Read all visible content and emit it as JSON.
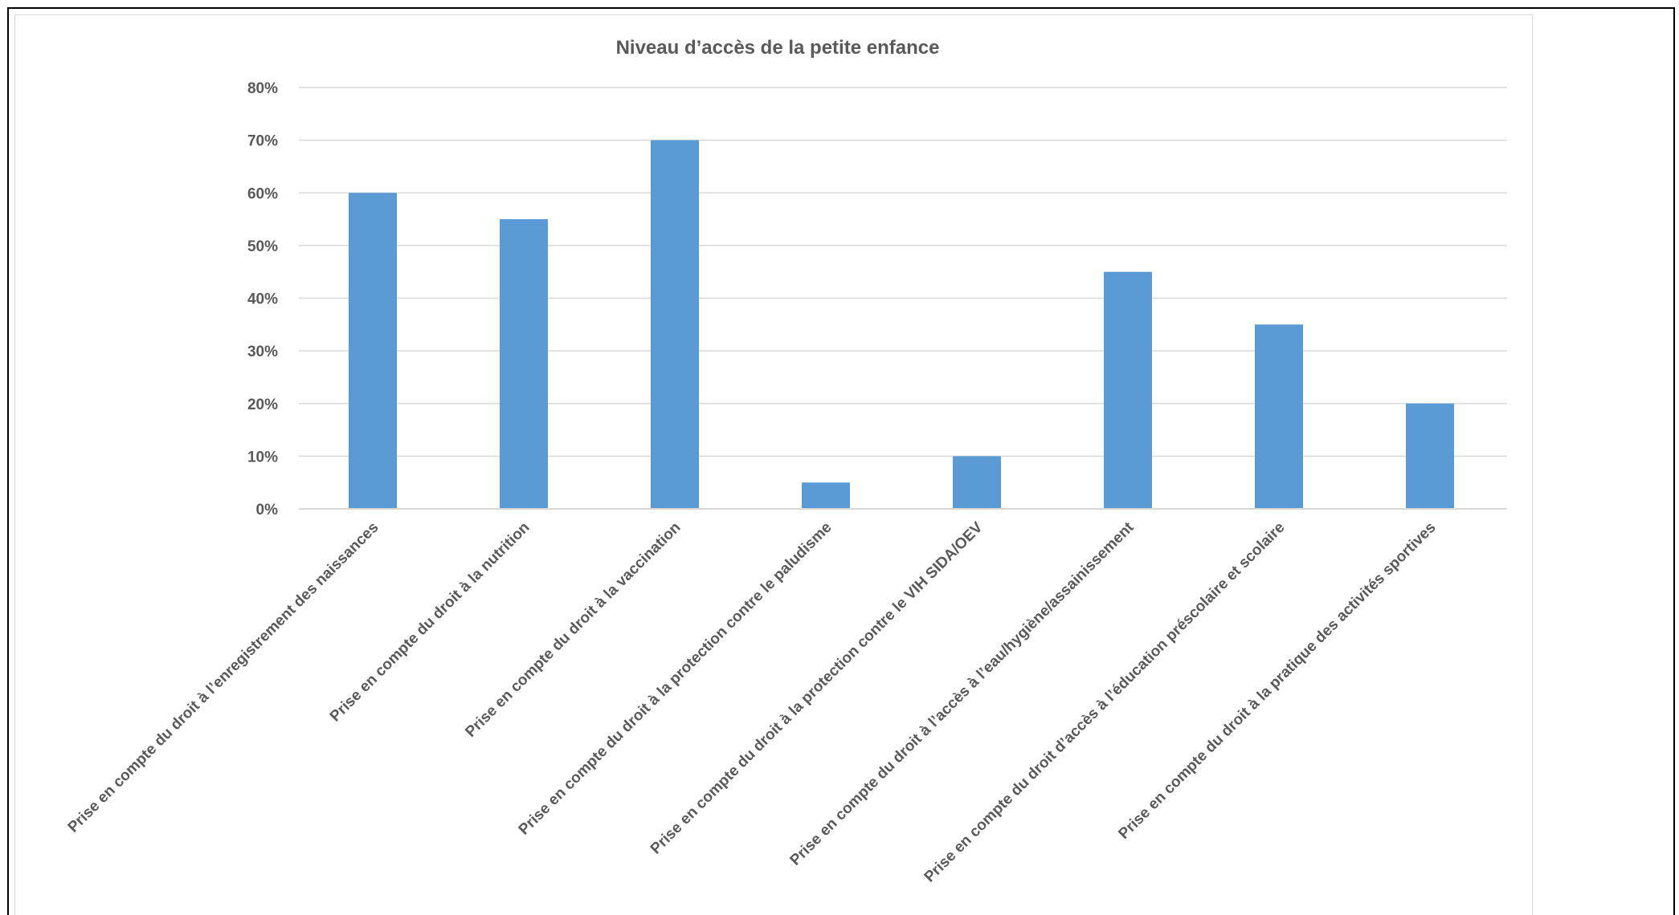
{
  "chart_data": {
    "type": "bar",
    "title": "Niveau d’accès de la petite enfance",
    "xlabel": "",
    "ylabel": "",
    "ylim": [
      0,
      80
    ],
    "yticks": [
      "0%",
      "10%",
      "20%",
      "30%",
      "40%",
      "50%",
      "60%",
      "70%",
      "80%"
    ],
    "grid": true,
    "legend": "none",
    "categories": [
      "Prise en compte du droit à l’enregistrement des naissances",
      "Prise en compte du droit à la nutrition",
      "Prise en compte du droit à la vaccination",
      "Prise en compte du droit à la protection contre le paludisme",
      "Prise en compte du droit à la protection contre le VIH SIDA/OEV",
      "Prise en compte du droit à l’accès à l’eau/hygiène/assainissement",
      "Prise en compte du droit d’accès à l’éducation préscolaire et scolaire",
      "Prise en compte du droit à la pratique des activités sportives"
    ],
    "values": [
      60,
      55,
      70,
      5,
      10,
      45,
      35,
      20
    ],
    "unit": "%",
    "colors": {
      "bar": "#5b9bd5",
      "grid": "#d9d9d9",
      "text": "#595959",
      "title": "#595959"
    }
  }
}
